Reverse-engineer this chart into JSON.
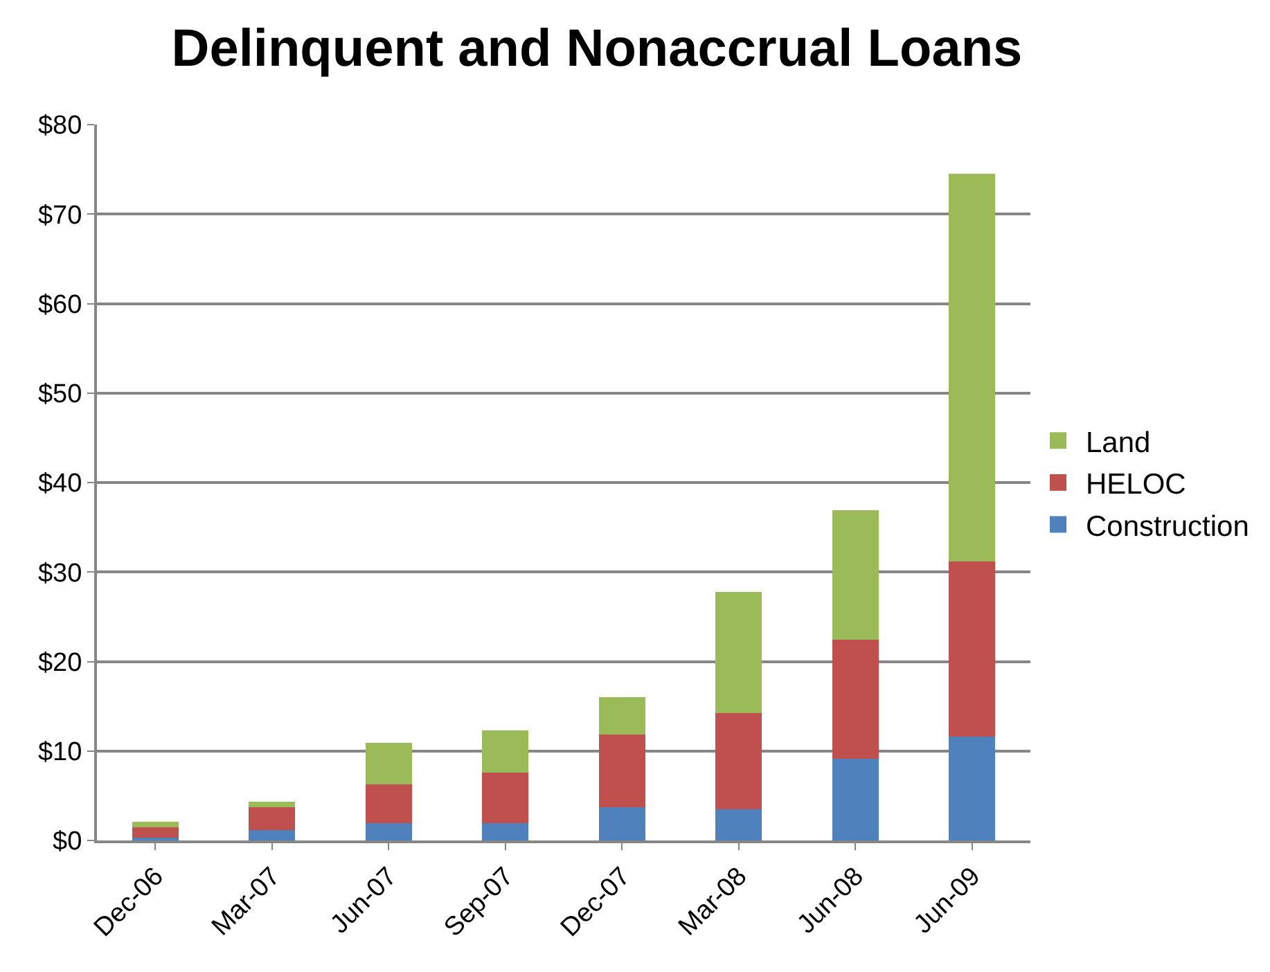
{
  "chart_data": {
    "type": "bar",
    "title": "Delinquent and Nonaccrual Loans",
    "stacked": true,
    "categories": [
      "Dec-06",
      "Mar-07",
      "Jun-07",
      "Sep-07",
      "Dec-07",
      "Mar-08",
      "Jun-08",
      "Jun-09"
    ],
    "series": [
      {
        "name": "Construction",
        "color": "#4f81bd",
        "values": [
          0.3,
          1.2,
          1.9,
          1.9,
          3.7,
          3.5,
          9.1,
          11.6
        ]
      },
      {
        "name": "HELOC",
        "color": "#c0504d",
        "values": [
          1.2,
          2.5,
          4.4,
          5.7,
          8.1,
          10.7,
          13.3,
          19.6
        ]
      },
      {
        "name": "Land",
        "color": "#9bbb59",
        "values": [
          0.6,
          0.6,
          4.6,
          4.7,
          4.2,
          13.6,
          14.5,
          43.3
        ]
      }
    ],
    "ylim": [
      0,
      80
    ],
    "yticks": [
      {
        "value": 0,
        "label": "$0"
      },
      {
        "value": 10,
        "label": "$10"
      },
      {
        "value": 20,
        "label": "$20"
      },
      {
        "value": 30,
        "label": "$30"
      },
      {
        "value": 40,
        "label": "$40"
      },
      {
        "value": 50,
        "label": "$50"
      },
      {
        "value": 60,
        "label": "$60"
      },
      {
        "value": 70,
        "label": "$70"
      },
      {
        "value": 80,
        "label": "$80"
      }
    ],
    "grid": "y",
    "legend": "right"
  }
}
